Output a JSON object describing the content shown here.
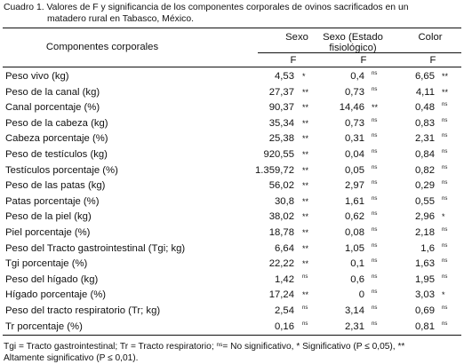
{
  "caption": {
    "line1": "Cuadro 1. Valores de F y significancia de los componentes corporales de ovinos sacrificados en un",
    "line2": "matadero rural en Tabasco, México."
  },
  "headers": {
    "components": "Componentes corporales",
    "sexo": "Sexo",
    "sexo_estado_line1": "Sexo (Estado",
    "sexo_estado_line2": "fisiológico)",
    "color": "Color",
    "f1": "F",
    "f2": "F",
    "f3": "F"
  },
  "rows": [
    {
      "label": "Peso vivo (kg)",
      "sexo": "4,53",
      "sexo_sig": "*",
      "fis": "0,4",
      "fis_sig": "ns",
      "color": "6,65",
      "color_sig": "**"
    },
    {
      "label": "Peso de la canal (kg)",
      "sexo": "27,37",
      "sexo_sig": "**",
      "fis": "0,73",
      "fis_sig": "ns",
      "color": "4,11",
      "color_sig": "**"
    },
    {
      "label": "Canal porcentaje (%)",
      "sexo": "90,37",
      "sexo_sig": "**",
      "fis": "14,46",
      "fis_sig": "**",
      "color": "0,48",
      "color_sig": "ns"
    },
    {
      "label": "Peso de la cabeza (kg)",
      "sexo": "35,34",
      "sexo_sig": "**",
      "fis": "0,73",
      "fis_sig": "ns",
      "color": "0,83",
      "color_sig": "ns"
    },
    {
      "label": "Cabeza porcentaje (%)",
      "sexo": "25,38",
      "sexo_sig": "**",
      "fis": "0,31",
      "fis_sig": "ns",
      "color": "2,31",
      "color_sig": "ns"
    },
    {
      "label": "Peso de testículos (kg)",
      "sexo": "920,55",
      "sexo_sig": "**",
      "fis": "0,04",
      "fis_sig": "ns",
      "color": "0,84",
      "color_sig": "ns"
    },
    {
      "label": "Testículos porcentaje (%)",
      "sexo": "1.359,72",
      "sexo_sig": "**",
      "fis": "0,05",
      "fis_sig": "ns",
      "color": "0,82",
      "color_sig": "ns"
    },
    {
      "label": "Peso de las patas (kg)",
      "sexo": "56,02",
      "sexo_sig": "**",
      "fis": "2,97",
      "fis_sig": "ns",
      "color": "0,29",
      "color_sig": "ns"
    },
    {
      "label": "Patas porcentaje (%)",
      "sexo": "30,8",
      "sexo_sig": "**",
      "fis": "1,61",
      "fis_sig": "ns",
      "color": "0,55",
      "color_sig": "ns"
    },
    {
      "label": "Peso de la piel (kg)",
      "sexo": "38,02",
      "sexo_sig": "**",
      "fis": "0,62",
      "fis_sig": "ns",
      "color": "2,96",
      "color_sig": "*"
    },
    {
      "label": "Piel porcentaje (%)",
      "sexo": "18,78",
      "sexo_sig": "**",
      "fis": "0,08",
      "fis_sig": "ns",
      "color": "2,18",
      "color_sig": "ns"
    },
    {
      "label": "Peso del Tracto gastrointestinal (Tgi; kg)",
      "sexo": "6,64",
      "sexo_sig": "**",
      "fis": "1,05",
      "fis_sig": "ns",
      "color": "1,6",
      "color_sig": "ns"
    },
    {
      "label": "Tgi porcentaje (%)",
      "sexo": "22,22",
      "sexo_sig": "**",
      "fis": "0,1",
      "fis_sig": "ns",
      "color": "1,63",
      "color_sig": "ns"
    },
    {
      "label": "Peso del hígado (kg)",
      "sexo": "1,42",
      "sexo_sig": "ns",
      "fis": "0,6",
      "fis_sig": "ns",
      "color": "1,95",
      "color_sig": "ns"
    },
    {
      "label": "Hígado porcentaje (%)",
      "sexo": "17,24",
      "sexo_sig": "**",
      "fis": "0",
      "fis_sig": "ns",
      "color": "3,03",
      "color_sig": "*"
    },
    {
      "label": "Peso del tracto respiratorio (Tr; kg)",
      "sexo": "2,54",
      "sexo_sig": "ns",
      "fis": "3,14",
      "fis_sig": "ns",
      "color": "0,69",
      "color_sig": "ns"
    },
    {
      "label": "Tr porcentaje (%)",
      "sexo": "0,16",
      "sexo_sig": "ns",
      "fis": "2,31",
      "fis_sig": "ns",
      "color": "0,81",
      "color_sig": "ns"
    }
  ],
  "footnote": {
    "part1": "Tgi = Tracto gastrointestinal; Tr = Tracto respiratorio; ",
    "ns": "ns",
    "part2": "= No significativo, * Significativo (P ≤ 0,05), **",
    "line2": "Altamente significativo (P ≤ 0,01)."
  }
}
